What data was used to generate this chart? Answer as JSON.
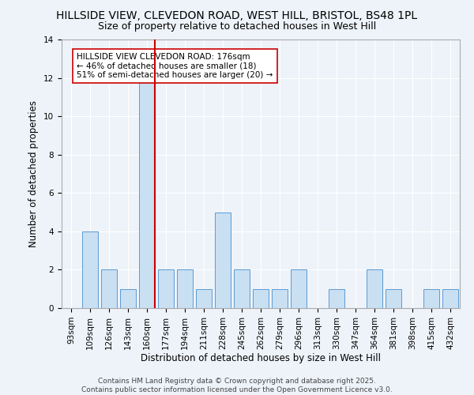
{
  "title1": "HILLSIDE VIEW, CLEVEDON ROAD, WEST HILL, BRISTOL, BS48 1PL",
  "title2": "Size of property relative to detached houses in West Hill",
  "xlabel": "Distribution of detached houses by size in West Hill",
  "ylabel": "Number of detached properties",
  "categories": [
    "93sqm",
    "109sqm",
    "126sqm",
    "143sqm",
    "160sqm",
    "177sqm",
    "194sqm",
    "211sqm",
    "228sqm",
    "245sqm",
    "262sqm",
    "279sqm",
    "296sqm",
    "313sqm",
    "330sqm",
    "347sqm",
    "364sqm",
    "381sqm",
    "398sqm",
    "415sqm",
    "432sqm"
  ],
  "values": [
    0,
    4,
    2,
    1,
    12,
    2,
    2,
    1,
    5,
    2,
    1,
    1,
    2,
    0,
    1,
    0,
    2,
    1,
    0,
    1,
    1
  ],
  "bar_color": "#c9dff2",
  "bar_edge_color": "#5b9bd5",
  "subject_bin_index": 4,
  "red_line_color": "#cc0000",
  "annotation_text": "HILLSIDE VIEW CLEVEDON ROAD: 176sqm\n← 46% of detached houses are smaller (18)\n51% of semi-detached houses are larger (20) →",
  "annotation_box_color": "white",
  "annotation_box_edge": "#cc0000",
  "ylim": [
    0,
    14
  ],
  "yticks": [
    0,
    2,
    4,
    6,
    8,
    10,
    12,
    14
  ],
  "footnote": "Contains HM Land Registry data © Crown copyright and database right 2025.\nContains public sector information licensed under the Open Government Licence v3.0.",
  "bg_color": "#eef3f9",
  "plot_bg_color": "#eef3f9",
  "grid_color": "#ffffff",
  "title_fontsize": 10,
  "subtitle_fontsize": 9,
  "axis_label_fontsize": 8.5,
  "tick_fontsize": 7.5,
  "annotation_fontsize": 7.5,
  "footnote_fontsize": 6.5
}
